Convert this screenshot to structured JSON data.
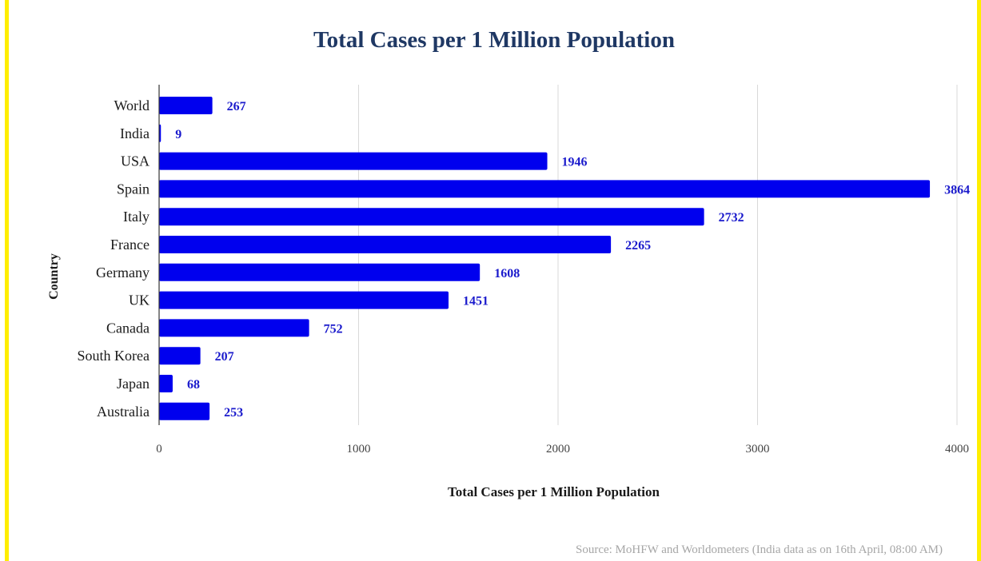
{
  "colors": {
    "bar": "#0000ee",
    "data_label": "#1a1acc",
    "title": "#1f3864",
    "grid": "#d9d9d9",
    "frame": "#ffee00",
    "source_text": "#a6a6a6"
  },
  "chart_data": {
    "type": "bar",
    "orientation": "horizontal",
    "title": "Total Cases per 1 Million Population",
    "xlabel": "Total Cases per 1 Million Population",
    "ylabel": "Country",
    "categories": [
      "World",
      "India",
      "USA",
      "Spain",
      "Italy",
      "France",
      "Germany",
      "UK",
      "Canada",
      "South Korea",
      "Japan",
      "Australia"
    ],
    "values": [
      267,
      9,
      1946,
      3864,
      2732,
      2265,
      1608,
      1451,
      752,
      207,
      68,
      253
    ],
    "xlim": [
      0,
      4000
    ],
    "xticks": [
      "0",
      "1000",
      "2000",
      "3000",
      "4000"
    ],
    "xtick_values": [
      0,
      1000,
      2000,
      3000,
      4000
    ],
    "grid": "vertical",
    "data_labels": true,
    "legend": "none"
  },
  "footer": {
    "source": "Source: MoHFW and Worldometers (India data as on 16th April, 08:00 AM)"
  }
}
